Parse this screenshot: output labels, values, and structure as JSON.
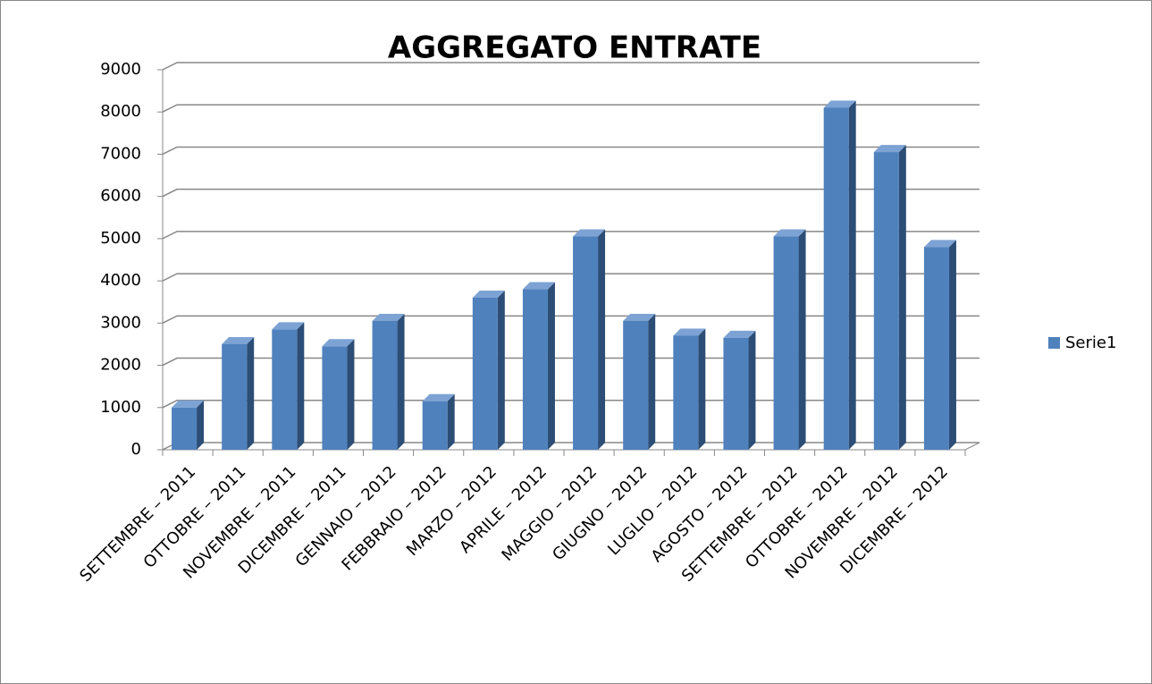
{
  "chart_data": {
    "type": "bar3d",
    "title": "AGGREGATO ENTRATE",
    "categories": [
      "SETTEMBRE – 2011",
      "OTTOBRE – 2011",
      "NOVEMBRE – 2011",
      "DICEMBRE – 2011",
      "GENNAIO – 2012",
      "FEBBRAIO – 2012",
      "MARZO – 2012",
      "APRILE – 2012",
      "MAGGIO – 2012",
      "GIUGNO – 2012",
      "LUGLIO – 2012",
      "AGOSTO – 2012",
      "SETTEMBRE – 2012",
      "OTTOBRE – 2012",
      "NOVEMBRE – 2012",
      "DICEMBRE – 2012"
    ],
    "series": [
      {
        "name": "Serie1",
        "color": "#4f81bd",
        "values": [
          1000,
          2500,
          2850,
          2450,
          3050,
          1150,
          3600,
          3800,
          5050,
          3050,
          2700,
          2650,
          5050,
          8100,
          7050,
          4800
        ]
      }
    ],
    "ylim": [
      0,
      9000
    ],
    "yticks": [
      0,
      1000,
      2000,
      3000,
      4000,
      5000,
      6000,
      7000,
      8000,
      9000
    ],
    "grid": true,
    "legend": "right"
  }
}
